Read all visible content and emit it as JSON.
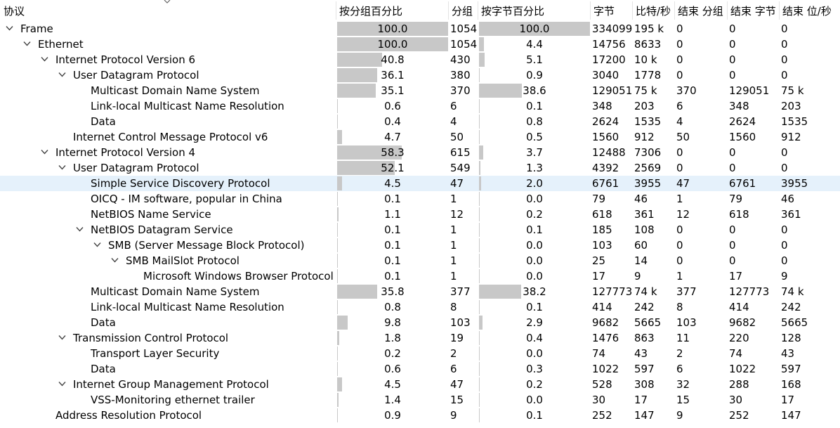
{
  "columns": {
    "protocol": "协议",
    "pct_packets": "按分组百分比",
    "packets": "分组",
    "pct_bytes": "按字节百分比",
    "bytes": "字节",
    "bits_s": "比特/秒",
    "end_packets": "结束 分组",
    "end_bytes": "结束 字节",
    "end_bits_s": "结束 位/秒"
  },
  "rows": [
    {
      "name": "Frame",
      "depth": 0,
      "expanded": true,
      "pct_packets": "100.0",
      "pct_packets_val": 100.0,
      "packets": "1054",
      "pct_bytes": "100.0",
      "pct_bytes_val": 100.0,
      "bytes": "334099",
      "bits_s": "195 k",
      "end_packets": "0",
      "end_bytes": "0",
      "end_bits_s": "0"
    },
    {
      "name": "Ethernet",
      "depth": 1,
      "expanded": true,
      "pct_packets": "100.0",
      "pct_packets_val": 100.0,
      "packets": "1054",
      "pct_bytes": "4.4",
      "pct_bytes_val": 4.4,
      "bytes": "14756",
      "bits_s": "8633",
      "end_packets": "0",
      "end_bytes": "0",
      "end_bits_s": "0"
    },
    {
      "name": "Internet Protocol Version 6",
      "depth": 2,
      "expanded": true,
      "pct_packets": "40.8",
      "pct_packets_val": 40.8,
      "packets": "430",
      "pct_bytes": "5.1",
      "pct_bytes_val": 5.1,
      "bytes": "17200",
      "bits_s": "10 k",
      "end_packets": "0",
      "end_bytes": "0",
      "end_bits_s": "0"
    },
    {
      "name": "User Datagram Protocol",
      "depth": 3,
      "expanded": true,
      "pct_packets": "36.1",
      "pct_packets_val": 36.1,
      "packets": "380",
      "pct_bytes": "0.9",
      "pct_bytes_val": 0.9,
      "bytes": "3040",
      "bits_s": "1778",
      "end_packets": "0",
      "end_bytes": "0",
      "end_bits_s": "0"
    },
    {
      "name": "Multicast Domain Name System",
      "depth": 4,
      "expanded": null,
      "pct_packets": "35.1",
      "pct_packets_val": 35.1,
      "packets": "370",
      "pct_bytes": "38.6",
      "pct_bytes_val": 38.6,
      "bytes": "129051",
      "bits_s": "75 k",
      "end_packets": "370",
      "end_bytes": "129051",
      "end_bits_s": "75 k"
    },
    {
      "name": "Link-local Multicast Name Resolution",
      "depth": 4,
      "expanded": null,
      "pct_packets": "0.6",
      "pct_packets_val": 0.6,
      "packets": "6",
      "pct_bytes": "0.1",
      "pct_bytes_val": 0.1,
      "bytes": "348",
      "bits_s": "203",
      "end_packets": "6",
      "end_bytes": "348",
      "end_bits_s": "203"
    },
    {
      "name": "Data",
      "depth": 4,
      "expanded": null,
      "pct_packets": "0.4",
      "pct_packets_val": 0.4,
      "packets": "4",
      "pct_bytes": "0.8",
      "pct_bytes_val": 0.8,
      "bytes": "2624",
      "bits_s": "1535",
      "end_packets": "4",
      "end_bytes": "2624",
      "end_bits_s": "1535"
    },
    {
      "name": "Internet Control Message Protocol v6",
      "depth": 3,
      "expanded": null,
      "pct_packets": "4.7",
      "pct_packets_val": 4.7,
      "packets": "50",
      "pct_bytes": "0.5",
      "pct_bytes_val": 0.5,
      "bytes": "1560",
      "bits_s": "912",
      "end_packets": "50",
      "end_bytes": "1560",
      "end_bits_s": "912"
    },
    {
      "name": "Internet Protocol Version 4",
      "depth": 2,
      "expanded": true,
      "pct_packets": "58.3",
      "pct_packets_val": 58.3,
      "packets": "615",
      "pct_bytes": "3.7",
      "pct_bytes_val": 3.7,
      "bytes": "12488",
      "bits_s": "7306",
      "end_packets": "0",
      "end_bytes": "0",
      "end_bits_s": "0"
    },
    {
      "name": "User Datagram Protocol",
      "depth": 3,
      "expanded": true,
      "pct_packets": "52.1",
      "pct_packets_val": 52.1,
      "packets": "549",
      "pct_bytes": "1.3",
      "pct_bytes_val": 1.3,
      "bytes": "4392",
      "bits_s": "2569",
      "end_packets": "0",
      "end_bytes": "0",
      "end_bits_s": "0"
    },
    {
      "name": "Simple Service Discovery Protocol",
      "depth": 4,
      "expanded": null,
      "selected": true,
      "pct_packets": "4.5",
      "pct_packets_val": 4.5,
      "packets": "47",
      "pct_bytes": "2.0",
      "pct_bytes_val": 2.0,
      "bytes": "6761",
      "bits_s": "3955",
      "end_packets": "47",
      "end_bytes": "6761",
      "end_bits_s": "3955"
    },
    {
      "name": "OICQ - IM software, popular in China",
      "depth": 4,
      "expanded": null,
      "pct_packets": "0.1",
      "pct_packets_val": 0.1,
      "packets": "1",
      "pct_bytes": "0.0",
      "pct_bytes_val": 0.0,
      "bytes": "79",
      "bits_s": "46",
      "end_packets": "1",
      "end_bytes": "79",
      "end_bits_s": "46"
    },
    {
      "name": "NetBIOS Name Service",
      "depth": 4,
      "expanded": null,
      "pct_packets": "1.1",
      "pct_packets_val": 1.1,
      "packets": "12",
      "pct_bytes": "0.2",
      "pct_bytes_val": 0.2,
      "bytes": "618",
      "bits_s": "361",
      "end_packets": "12",
      "end_bytes": "618",
      "end_bits_s": "361"
    },
    {
      "name": "NetBIOS Datagram Service",
      "depth": 4,
      "expanded": true,
      "pct_packets": "0.1",
      "pct_packets_val": 0.1,
      "packets": "1",
      "pct_bytes": "0.1",
      "pct_bytes_val": 0.1,
      "bytes": "185",
      "bits_s": "108",
      "end_packets": "0",
      "end_bytes": "0",
      "end_bits_s": "0"
    },
    {
      "name": "SMB (Server Message Block Protocol)",
      "depth": 5,
      "expanded": true,
      "pct_packets": "0.1",
      "pct_packets_val": 0.1,
      "packets": "1",
      "pct_bytes": "0.0",
      "pct_bytes_val": 0.0,
      "bytes": "103",
      "bits_s": "60",
      "end_packets": "0",
      "end_bytes": "0",
      "end_bits_s": "0"
    },
    {
      "name": "SMB MailSlot Protocol",
      "depth": 6,
      "expanded": true,
      "pct_packets": "0.1",
      "pct_packets_val": 0.1,
      "packets": "1",
      "pct_bytes": "0.0",
      "pct_bytes_val": 0.0,
      "bytes": "25",
      "bits_s": "14",
      "end_packets": "0",
      "end_bytes": "0",
      "end_bits_s": "0"
    },
    {
      "name": "Microsoft Windows Browser Protocol",
      "depth": 7,
      "expanded": null,
      "pct_packets": "0.1",
      "pct_packets_val": 0.1,
      "packets": "1",
      "pct_bytes": "0.0",
      "pct_bytes_val": 0.0,
      "bytes": "17",
      "bits_s": "9",
      "end_packets": "1",
      "end_bytes": "17",
      "end_bits_s": "9"
    },
    {
      "name": "Multicast Domain Name System",
      "depth": 4,
      "expanded": null,
      "pct_packets": "35.8",
      "pct_packets_val": 35.8,
      "packets": "377",
      "pct_bytes": "38.2",
      "pct_bytes_val": 38.2,
      "bytes": "127773",
      "bits_s": "74 k",
      "end_packets": "377",
      "end_bytes": "127773",
      "end_bits_s": "74 k"
    },
    {
      "name": "Link-local Multicast Name Resolution",
      "depth": 4,
      "expanded": null,
      "pct_packets": "0.8",
      "pct_packets_val": 0.8,
      "packets": "8",
      "pct_bytes": "0.1",
      "pct_bytes_val": 0.1,
      "bytes": "414",
      "bits_s": "242",
      "end_packets": "8",
      "end_bytes": "414",
      "end_bits_s": "242"
    },
    {
      "name": "Data",
      "depth": 4,
      "expanded": null,
      "pct_packets": "9.8",
      "pct_packets_val": 9.8,
      "packets": "103",
      "pct_bytes": "2.9",
      "pct_bytes_val": 2.9,
      "bytes": "9682",
      "bits_s": "5665",
      "end_packets": "103",
      "end_bytes": "9682",
      "end_bits_s": "5665"
    },
    {
      "name": "Transmission Control Protocol",
      "depth": 3,
      "expanded": true,
      "pct_packets": "1.8",
      "pct_packets_val": 1.8,
      "packets": "19",
      "pct_bytes": "0.4",
      "pct_bytes_val": 0.4,
      "bytes": "1476",
      "bits_s": "863",
      "end_packets": "11",
      "end_bytes": "220",
      "end_bits_s": "128"
    },
    {
      "name": "Transport Layer Security",
      "depth": 4,
      "expanded": null,
      "pct_packets": "0.2",
      "pct_packets_val": 0.2,
      "packets": "2",
      "pct_bytes": "0.0",
      "pct_bytes_val": 0.0,
      "bytes": "74",
      "bits_s": "43",
      "end_packets": "2",
      "end_bytes": "74",
      "end_bits_s": "43"
    },
    {
      "name": "Data",
      "depth": 4,
      "expanded": null,
      "pct_packets": "0.6",
      "pct_packets_val": 0.6,
      "packets": "6",
      "pct_bytes": "0.3",
      "pct_bytes_val": 0.3,
      "bytes": "1022",
      "bits_s": "597",
      "end_packets": "6",
      "end_bytes": "1022",
      "end_bits_s": "597"
    },
    {
      "name": "Internet Group Management Protocol",
      "depth": 3,
      "expanded": true,
      "pct_packets": "4.5",
      "pct_packets_val": 4.5,
      "packets": "47",
      "pct_bytes": "0.2",
      "pct_bytes_val": 0.2,
      "bytes": "528",
      "bits_s": "308",
      "end_packets": "32",
      "end_bytes": "288",
      "end_bits_s": "168"
    },
    {
      "name": "VSS-Monitoring ethernet trailer",
      "depth": 4,
      "expanded": null,
      "pct_packets": "1.4",
      "pct_packets_val": 1.4,
      "packets": "15",
      "pct_bytes": "0.0",
      "pct_bytes_val": 0.0,
      "bytes": "30",
      "bits_s": "17",
      "end_packets": "15",
      "end_bytes": "30",
      "end_bits_s": "17"
    },
    {
      "name": "Address Resolution Protocol",
      "depth": 2,
      "expanded": null,
      "pct_packets": "0.9",
      "pct_packets_val": 0.9,
      "packets": "9",
      "pct_bytes": "0.1",
      "pct_bytes_val": 0.1,
      "bytes": "252",
      "bits_s": "147",
      "end_packets": "9",
      "end_bytes": "252",
      "end_bits_s": "147"
    }
  ],
  "colors": {
    "bar": "#c8c8c8",
    "selected_row": "#e5f1fb",
    "arrow": "#444444",
    "separator": "#e4e4e4"
  }
}
